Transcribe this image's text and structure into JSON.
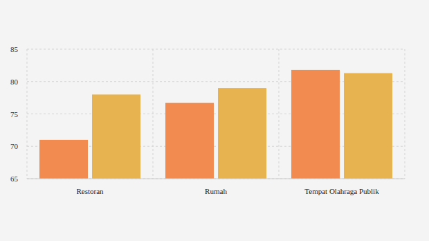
{
  "chart_data": {
    "type": "bar",
    "categories": [
      "Restoran",
      "Rumah",
      "Tempat Olahraga Publik"
    ],
    "series": [
      {
        "color": "#f28b50",
        "values": [
          71,
          76.7,
          81.8
        ]
      },
      {
        "color": "#e6b350",
        "values": [
          78,
          79,
          81.3
        ]
      }
    ],
    "ylim": [
      65,
      85
    ],
    "yticks": [
      65,
      70,
      75,
      80,
      85
    ],
    "grid": true
  }
}
